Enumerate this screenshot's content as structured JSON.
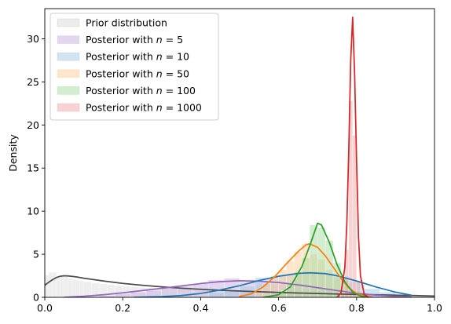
{
  "chart_data": {
    "type": "area",
    "xlabel": "",
    "ylabel": "Density",
    "xlim": [
      0.0,
      1.0
    ],
    "ylim": [
      0,
      33.5
    ],
    "x_ticks": [
      "0.0",
      "0.2",
      "0.4",
      "0.6",
      "0.8",
      "1.0"
    ],
    "x_tick_values": [
      0.0,
      0.2,
      0.4,
      0.6,
      0.8,
      1.0
    ],
    "y_ticks": [
      "0",
      "5",
      "10",
      "15",
      "20",
      "25",
      "30"
    ],
    "y_tick_values": [
      0,
      5,
      10,
      15,
      20,
      25,
      30
    ],
    "grid": false,
    "legend_position": "upper-left",
    "series": [
      {
        "name": "Prior distribution",
        "line_color": "#4d4d4d",
        "fill_color": "#d9d9d9",
        "histogram": [
          [
            0.0,
            0.01,
            2.6
          ],
          [
            0.01,
            0.02,
            2.9
          ],
          [
            0.02,
            0.03,
            2.9
          ],
          [
            0.03,
            0.04,
            2.3
          ],
          [
            0.04,
            0.05,
            2.5
          ],
          [
            0.05,
            0.06,
            2.4
          ],
          [
            0.06,
            0.07,
            2.2
          ],
          [
            0.07,
            0.08,
            2.1
          ],
          [
            0.08,
            0.09,
            2.0
          ],
          [
            0.09,
            0.1,
            1.9
          ],
          [
            0.1,
            0.12,
            1.8
          ],
          [
            0.12,
            0.14,
            1.65
          ],
          [
            0.14,
            0.16,
            1.55
          ],
          [
            0.16,
            0.18,
            1.45
          ],
          [
            0.18,
            0.2,
            1.35
          ],
          [
            0.2,
            0.22,
            1.3
          ],
          [
            0.22,
            0.24,
            1.2
          ],
          [
            0.24,
            0.26,
            1.15
          ],
          [
            0.26,
            0.28,
            1.1
          ],
          [
            0.28,
            0.3,
            1.05
          ],
          [
            0.3,
            0.32,
            1.0
          ],
          [
            0.32,
            0.34,
            0.95
          ],
          [
            0.34,
            0.36,
            0.9
          ],
          [
            0.36,
            0.38,
            0.85
          ],
          [
            0.38,
            0.4,
            0.8
          ],
          [
            0.4,
            0.42,
            0.78
          ],
          [
            0.42,
            0.44,
            0.75
          ],
          [
            0.44,
            0.46,
            0.7
          ],
          [
            0.46,
            0.48,
            0.68
          ],
          [
            0.48,
            0.5,
            0.65
          ],
          [
            0.5,
            0.52,
            0.6
          ],
          [
            0.52,
            0.54,
            0.58
          ],
          [
            0.54,
            0.56,
            0.55
          ],
          [
            0.56,
            0.58,
            0.52
          ],
          [
            0.58,
            0.6,
            0.5
          ],
          [
            0.6,
            0.62,
            0.48
          ],
          [
            0.62,
            0.64,
            0.45
          ],
          [
            0.64,
            0.66,
            0.43
          ],
          [
            0.66,
            0.68,
            0.4
          ],
          [
            0.68,
            0.7,
            0.38
          ],
          [
            0.7,
            0.72,
            0.36
          ],
          [
            0.72,
            0.74,
            0.34
          ],
          [
            0.74,
            0.76,
            0.32
          ],
          [
            0.76,
            0.78,
            0.3
          ],
          [
            0.78,
            0.8,
            0.28
          ],
          [
            0.8,
            0.82,
            0.26
          ],
          [
            0.82,
            0.84,
            0.25
          ],
          [
            0.84,
            0.86,
            0.23
          ],
          [
            0.86,
            0.88,
            0.22
          ],
          [
            0.88,
            0.9,
            0.21
          ],
          [
            0.9,
            0.92,
            0.2
          ],
          [
            0.92,
            0.94,
            0.19
          ],
          [
            0.94,
            0.96,
            0.18
          ],
          [
            0.96,
            0.98,
            0.17
          ],
          [
            0.98,
            1.0,
            0.16
          ]
        ],
        "kde": [
          [
            0.0,
            1.4
          ],
          [
            0.01,
            1.75
          ],
          [
            0.02,
            2.05
          ],
          [
            0.03,
            2.3
          ],
          [
            0.04,
            2.45
          ],
          [
            0.05,
            2.5
          ],
          [
            0.06,
            2.48
          ],
          [
            0.08,
            2.38
          ],
          [
            0.1,
            2.22
          ],
          [
            0.15,
            1.9
          ],
          [
            0.2,
            1.62
          ],
          [
            0.25,
            1.4
          ],
          [
            0.3,
            1.22
          ],
          [
            0.35,
            1.06
          ],
          [
            0.4,
            0.93
          ],
          [
            0.45,
            0.82
          ],
          [
            0.5,
            0.73
          ],
          [
            0.55,
            0.65
          ],
          [
            0.6,
            0.57
          ],
          [
            0.65,
            0.5
          ],
          [
            0.7,
            0.44
          ],
          [
            0.75,
            0.39
          ],
          [
            0.8,
            0.34
          ],
          [
            0.85,
            0.29
          ],
          [
            0.9,
            0.25
          ],
          [
            0.95,
            0.2
          ],
          [
            1.0,
            0.15
          ]
        ]
      },
      {
        "name": "Posterior with n = 5",
        "label_prefix": "Posterior with ",
        "label_var": "n",
        "label_suffix": " = 5",
        "line_color": "#9467bd",
        "fill_color": "#c5b0e0",
        "histogram": [
          [
            0.14,
            0.18,
            0.2
          ],
          [
            0.18,
            0.22,
            0.4
          ],
          [
            0.22,
            0.26,
            0.6
          ],
          [
            0.26,
            0.3,
            0.8
          ],
          [
            0.3,
            0.34,
            1.1
          ],
          [
            0.34,
            0.38,
            1.3
          ],
          [
            0.38,
            0.42,
            1.6
          ],
          [
            0.42,
            0.46,
            2.0
          ],
          [
            0.46,
            0.5,
            2.2
          ],
          [
            0.5,
            0.54,
            1.8
          ],
          [
            0.54,
            0.58,
            1.7
          ],
          [
            0.58,
            0.62,
            1.5
          ],
          [
            0.62,
            0.66,
            1.3
          ],
          [
            0.66,
            0.7,
            1.0
          ],
          [
            0.7,
            0.74,
            0.8
          ],
          [
            0.74,
            0.78,
            0.5
          ],
          [
            0.78,
            0.82,
            0.3
          ],
          [
            0.82,
            0.86,
            0.2
          ],
          [
            0.86,
            0.9,
            0.1
          ]
        ],
        "kde": [
          [
            0.05,
            0.0
          ],
          [
            0.1,
            0.12
          ],
          [
            0.15,
            0.3
          ],
          [
            0.2,
            0.52
          ],
          [
            0.25,
            0.78
          ],
          [
            0.3,
            1.05
          ],
          [
            0.35,
            1.32
          ],
          [
            0.4,
            1.6
          ],
          [
            0.45,
            1.82
          ],
          [
            0.5,
            1.92
          ],
          [
            0.55,
            1.88
          ],
          [
            0.6,
            1.72
          ],
          [
            0.65,
            1.45
          ],
          [
            0.7,
            1.12
          ],
          [
            0.75,
            0.78
          ],
          [
            0.8,
            0.48
          ],
          [
            0.85,
            0.25
          ],
          [
            0.9,
            0.1
          ],
          [
            0.94,
            0.02
          ]
        ]
      },
      {
        "name": "Posterior with n = 10",
        "label_prefix": "Posterior with ",
        "label_var": "n",
        "label_suffix": " = 10",
        "line_color": "#1f77b4",
        "fill_color": "#a6c8e4",
        "histogram": [
          [
            0.42,
            0.46,
            0.6
          ],
          [
            0.46,
            0.5,
            0.9
          ],
          [
            0.5,
            0.54,
            1.3
          ],
          [
            0.54,
            0.58,
            2.3
          ],
          [
            0.58,
            0.62,
            2.5
          ],
          [
            0.62,
            0.66,
            2.7
          ],
          [
            0.66,
            0.7,
            3.0
          ],
          [
            0.7,
            0.74,
            2.8
          ],
          [
            0.74,
            0.78,
            2.4
          ],
          [
            0.78,
            0.82,
            1.8
          ],
          [
            0.82,
            0.86,
            1.0
          ],
          [
            0.86,
            0.9,
            0.6
          ],
          [
            0.9,
            0.94,
            0.3
          ]
        ],
        "kde": [
          [
            0.23,
            0.0
          ],
          [
            0.3,
            0.08
          ],
          [
            0.35,
            0.2
          ],
          [
            0.4,
            0.45
          ],
          [
            0.45,
            0.85
          ],
          [
            0.5,
            1.35
          ],
          [
            0.55,
            1.95
          ],
          [
            0.6,
            2.45
          ],
          [
            0.65,
            2.78
          ],
          [
            0.68,
            2.85
          ],
          [
            0.72,
            2.75
          ],
          [
            0.75,
            2.5
          ],
          [
            0.8,
            1.9
          ],
          [
            0.85,
            1.2
          ],
          [
            0.9,
            0.6
          ],
          [
            0.94,
            0.25
          ]
        ]
      },
      {
        "name": "Posterior with n = 50",
        "label_prefix": "Posterior with ",
        "label_var": "n",
        "label_suffix": " = 50",
        "line_color": "#ff7f0e",
        "fill_color": "#ffcc99",
        "histogram": [
          [
            0.54,
            0.56,
            0.9
          ],
          [
            0.56,
            0.58,
            1.6
          ],
          [
            0.58,
            0.6,
            2.5
          ],
          [
            0.6,
            0.62,
            3.2
          ],
          [
            0.62,
            0.64,
            4.2
          ],
          [
            0.64,
            0.66,
            5.3
          ],
          [
            0.66,
            0.68,
            6.2
          ],
          [
            0.68,
            0.7,
            5.0
          ],
          [
            0.7,
            0.72,
            4.4
          ],
          [
            0.72,
            0.74,
            3.2
          ],
          [
            0.74,
            0.76,
            2.2
          ],
          [
            0.76,
            0.78,
            1.3
          ],
          [
            0.78,
            0.8,
            0.6
          ],
          [
            0.8,
            0.82,
            0.3
          ]
        ],
        "kde": [
          [
            0.5,
            0.1
          ],
          [
            0.53,
            0.4
          ],
          [
            0.56,
            1.2
          ],
          [
            0.59,
            2.4
          ],
          [
            0.62,
            3.9
          ],
          [
            0.65,
            5.3
          ],
          [
            0.67,
            6.1
          ],
          [
            0.68,
            6.2
          ],
          [
            0.7,
            5.8
          ],
          [
            0.72,
            4.8
          ],
          [
            0.74,
            3.5
          ],
          [
            0.76,
            2.2
          ],
          [
            0.78,
            1.1
          ],
          [
            0.8,
            0.45
          ],
          [
            0.82,
            0.15
          ],
          [
            0.84,
            0.05
          ]
        ]
      },
      {
        "name": "Posterior with n = 100",
        "label_prefix": "Posterior with ",
        "label_var": "n",
        "label_suffix": " = 100",
        "line_color": "#2ca02c",
        "fill_color": "#a6dba0",
        "histogram": [
          [
            0.6,
            0.62,
            0.8
          ],
          [
            0.62,
            0.64,
            1.6
          ],
          [
            0.64,
            0.66,
            3.0
          ],
          [
            0.66,
            0.68,
            4.6
          ],
          [
            0.68,
            0.7,
            8.4
          ],
          [
            0.7,
            0.72,
            8.1
          ],
          [
            0.72,
            0.74,
            6.6
          ],
          [
            0.74,
            0.76,
            4.0
          ],
          [
            0.76,
            0.78,
            2.0
          ],
          [
            0.78,
            0.8,
            0.8
          ]
        ],
        "kde": [
          [
            0.56,
            0.0
          ],
          [
            0.6,
            0.3
          ],
          [
            0.63,
            1.2
          ],
          [
            0.66,
            3.6
          ],
          [
            0.68,
            6.0
          ],
          [
            0.7,
            8.6
          ],
          [
            0.71,
            8.4
          ],
          [
            0.73,
            6.4
          ],
          [
            0.75,
            3.8
          ],
          [
            0.77,
            1.8
          ],
          [
            0.79,
            0.6
          ],
          [
            0.81,
            0.15
          ],
          [
            0.83,
            0.0
          ]
        ]
      },
      {
        "name": "Posterior with n = 1000",
        "label_prefix": "Posterior with ",
        "label_var": "n",
        "label_suffix": " = 1000",
        "line_color": "#d62728",
        "fill_color": "#f2a8a8",
        "histogram": [
          [
            0.76,
            0.77,
            0.5
          ],
          [
            0.77,
            0.78,
            5.5
          ],
          [
            0.78,
            0.79,
            22.8
          ],
          [
            0.79,
            0.8,
            18.8
          ],
          [
            0.8,
            0.81,
            1.8
          ],
          [
            0.81,
            0.82,
            0.3
          ]
        ],
        "kde": [
          [
            0.75,
            0.0
          ],
          [
            0.76,
            0.5
          ],
          [
            0.77,
            3.5
          ],
          [
            0.775,
            8.5
          ],
          [
            0.78,
            17.0
          ],
          [
            0.785,
            27.5
          ],
          [
            0.79,
            32.5
          ],
          [
            0.795,
            26.0
          ],
          [
            0.8,
            16.0
          ],
          [
            0.805,
            7.0
          ],
          [
            0.81,
            2.5
          ],
          [
            0.82,
            0.3
          ],
          [
            0.83,
            0.0
          ]
        ]
      }
    ]
  }
}
